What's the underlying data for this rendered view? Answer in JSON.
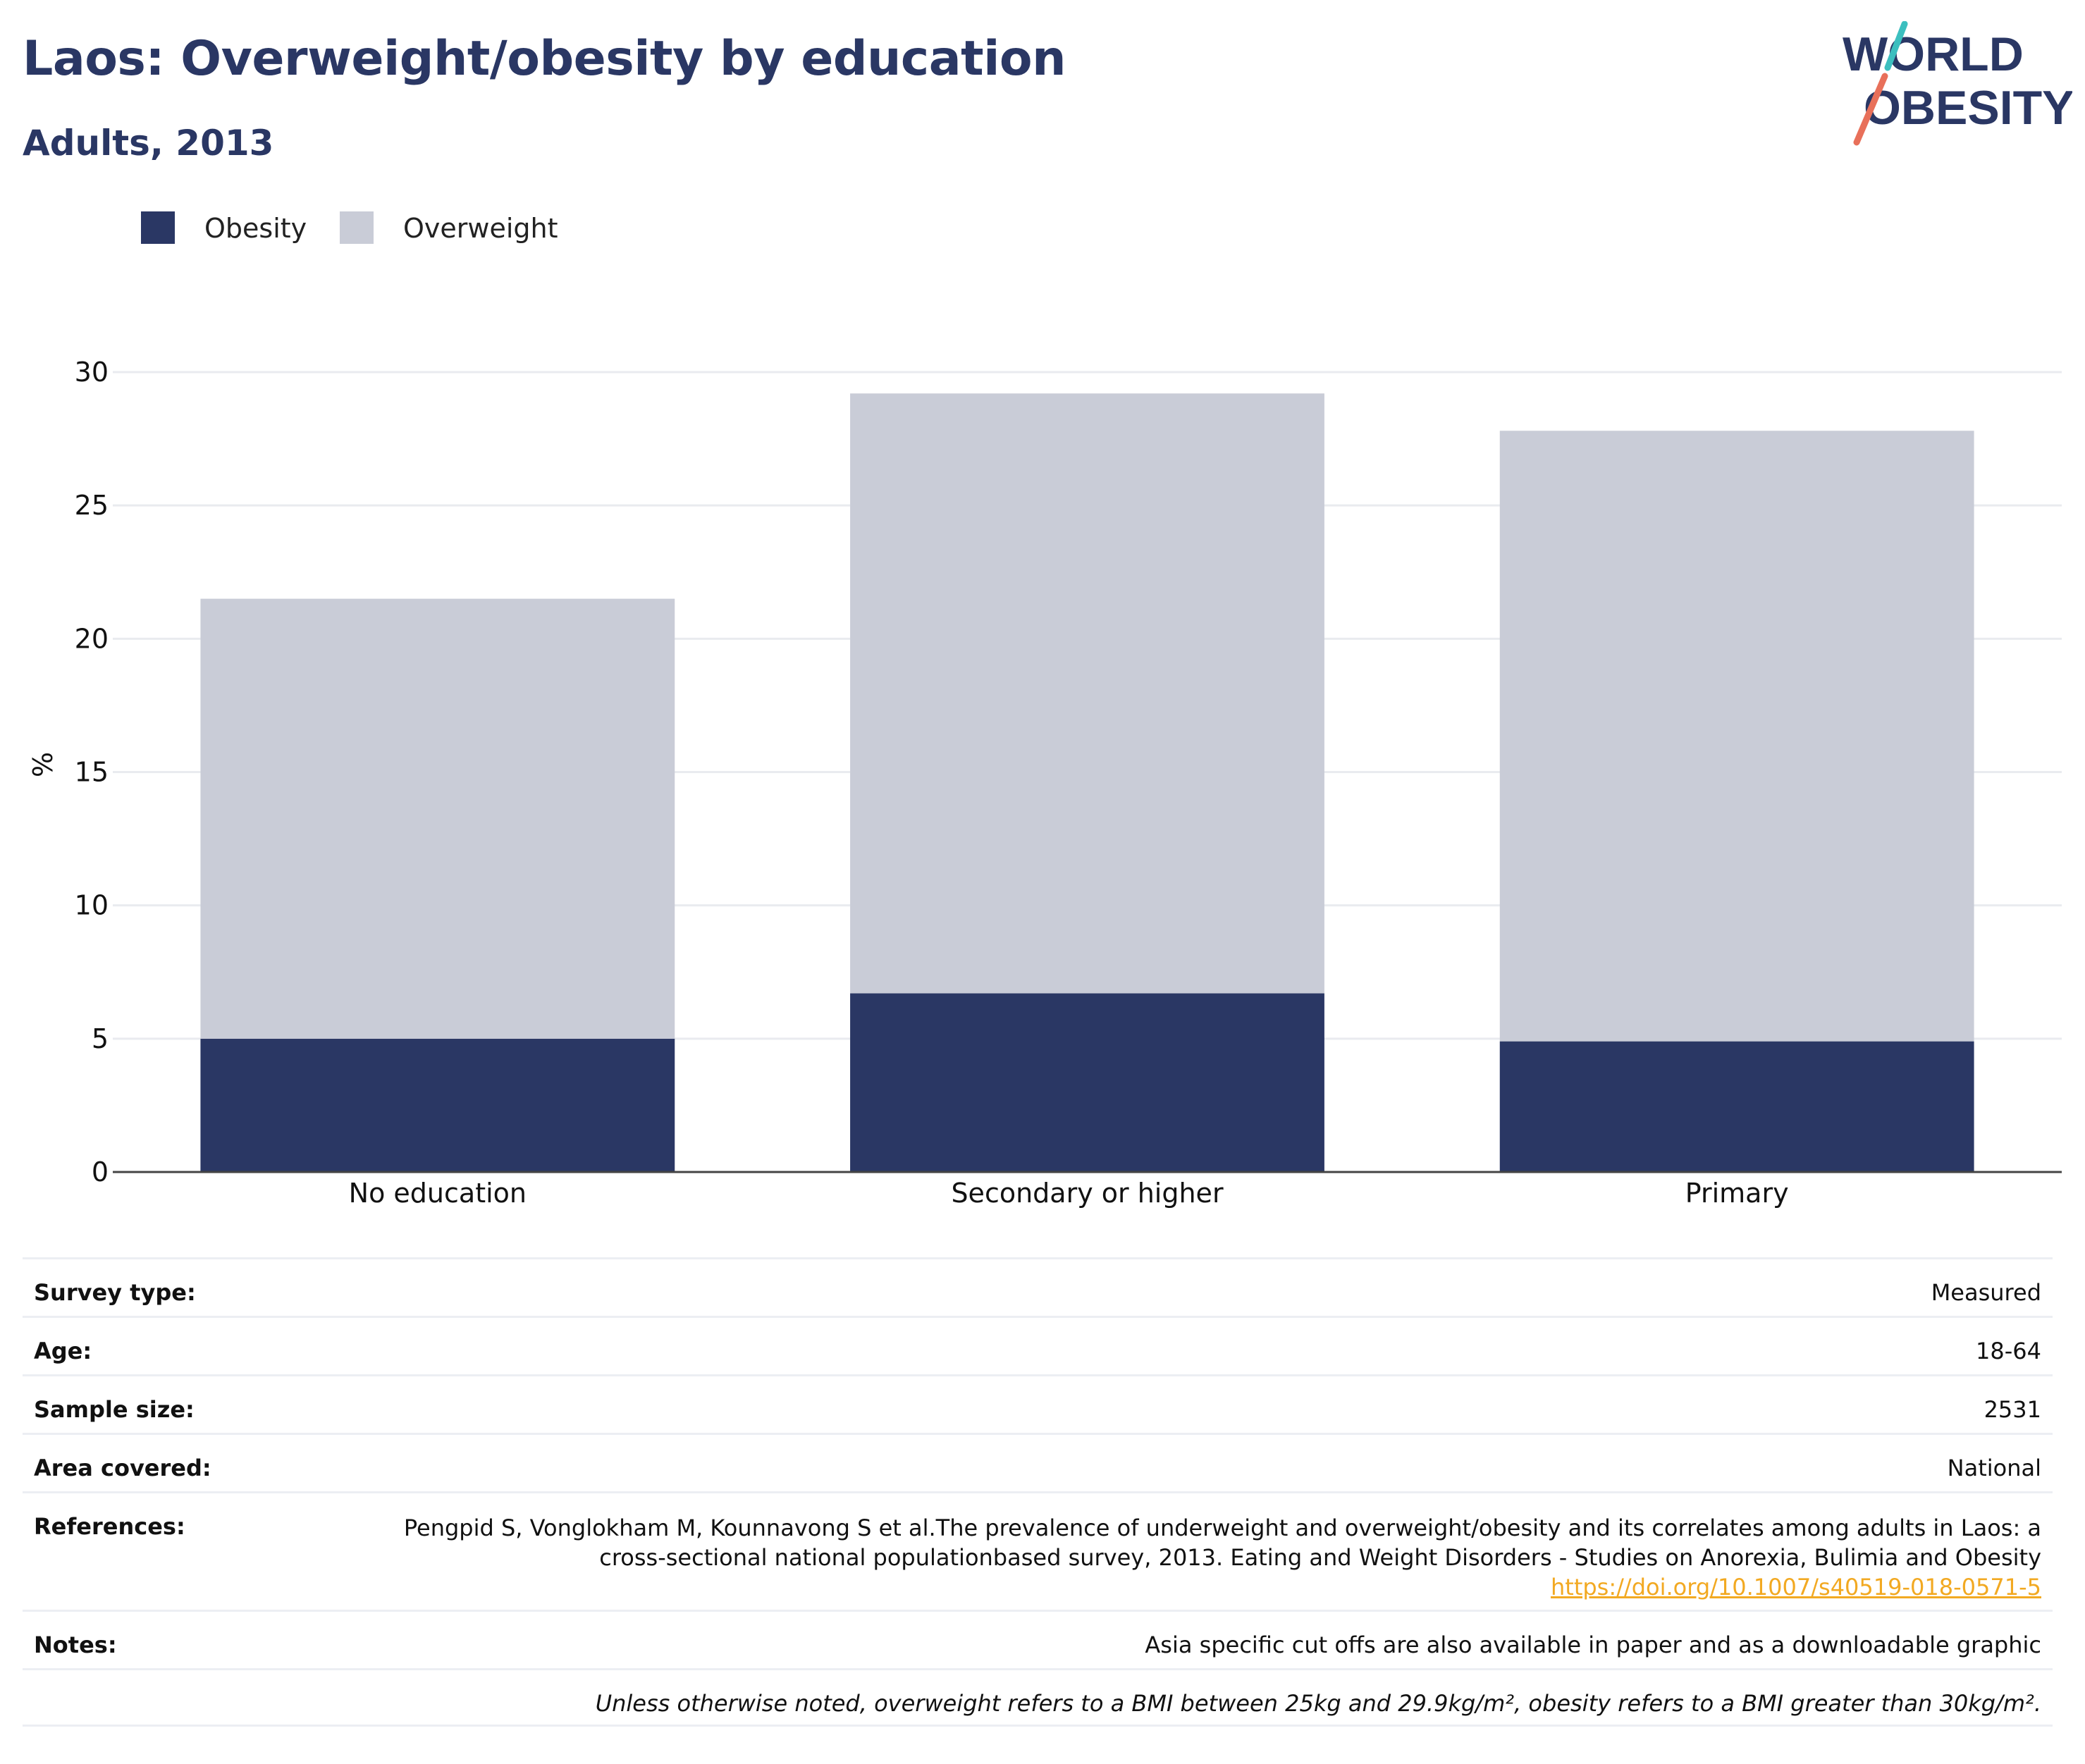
{
  "header": {
    "title": "Laos: Overweight/obesity by education",
    "subtitle": "Adults, 2013",
    "logo_line1": "WORLD",
    "logo_line2": "OBESITY"
  },
  "colors": {
    "obesity": "#2a3764",
    "overweight": "#c9ccd7",
    "title": "#2a3764",
    "link": "#f2a922",
    "logo_teal": "#3cbfbf",
    "logo_coral": "#e8705a"
  },
  "chart_data": {
    "type": "bar",
    "stacked": true,
    "categories": [
      "No education",
      "Secondary or higher",
      "Primary"
    ],
    "series": [
      {
        "name": "Obesity",
        "values": [
          5.0,
          6.7,
          4.9
        ]
      },
      {
        "name": "Overweight",
        "values": [
          16.5,
          22.5,
          22.9
        ]
      }
    ],
    "ylabel": "%",
    "ylim": [
      0,
      30
    ],
    "yticks": [
      0,
      5,
      10,
      15,
      20,
      25,
      30
    ],
    "grid": true,
    "legend_position": "top-left"
  },
  "meta": {
    "survey_type": {
      "label": "Survey type:",
      "value": "Measured"
    },
    "age": {
      "label": "Age:",
      "value": "18-64"
    },
    "sample_size": {
      "label": "Sample size:",
      "value": "2531"
    },
    "area": {
      "label": "Area covered:",
      "value": "National"
    },
    "references": {
      "label": "References:",
      "text": "Pengpid S, Vonglokham M, Kounnavong S et al.The prevalence of underweight and overweight/obesity and its correlates among adults in Laos: a cross-sectional national populationbased survey, 2013. Eating and Weight Disorders - Studies on Anorexia, Bulimia and Obesity",
      "link": "https://doi.org/10.1007/s40519-018-0571-5"
    },
    "notes": {
      "label": "Notes:",
      "value": "Asia specific cut offs are also available in paper and as a downloadable graphic"
    },
    "footnote": "Unless otherwise noted, overweight refers to a BMI between 25kg and 29.9kg/m², obesity refers to a BMI greater than 30kg/m²."
  }
}
